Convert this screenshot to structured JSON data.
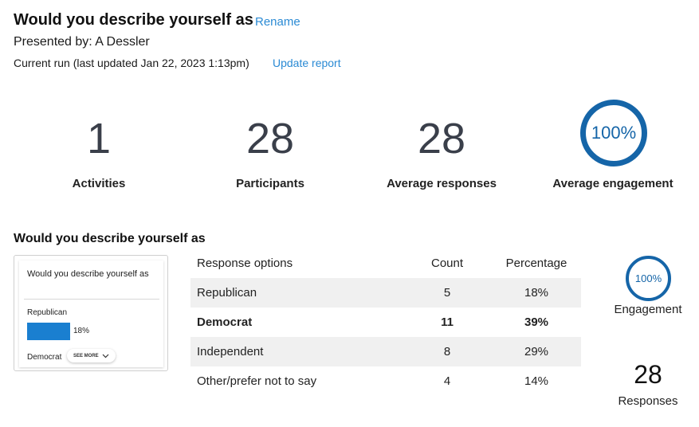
{
  "header": {
    "title": "Would you describe yourself as",
    "rename_label": "Rename",
    "presented_by": "Presented by: A Dessler",
    "current_run": "Current run (last updated Jan 22, 2023 1:13pm)",
    "update_label": "Update report"
  },
  "stats": {
    "activities": {
      "value": "1",
      "label": "Activities"
    },
    "participants": {
      "value": "28",
      "label": "Participants"
    },
    "average_responses": {
      "value": "28",
      "label": "Average responses"
    },
    "average_engagement": {
      "value": "100%",
      "label": "Average engagement",
      "fraction": 1.0
    }
  },
  "question": {
    "title": "Would you describe yourself as",
    "thumbnail": {
      "question": "Would you describe yourself as",
      "option1": "Republican",
      "option1_pct": "18%",
      "option1_fraction": 0.18,
      "option2": "Democrat",
      "see_more": "SEE MORE",
      "see_more_icon": "chevron-down-icon"
    },
    "table": {
      "headers": {
        "option": "Response options",
        "count": "Count",
        "percentage": "Percentage"
      },
      "rows": [
        {
          "option": "Republican",
          "count": "5",
          "percentage": "18%"
        },
        {
          "option": "Democrat",
          "count": "11",
          "percentage": "39%"
        },
        {
          "option": "Independent",
          "count": "8",
          "percentage": "29%"
        },
        {
          "option": "Other/prefer not to say",
          "count": "4",
          "percentage": "14%"
        }
      ]
    },
    "engagement": {
      "value": "100%",
      "label": "Engagement",
      "fraction": 1.0
    },
    "responses": {
      "value": "28",
      "label": "Responses"
    }
  },
  "colors": {
    "link": "#2a8ad4",
    "gauge": "#1565a8",
    "bar": "#1a7fd0",
    "row_shade": "#f0f0f0"
  }
}
